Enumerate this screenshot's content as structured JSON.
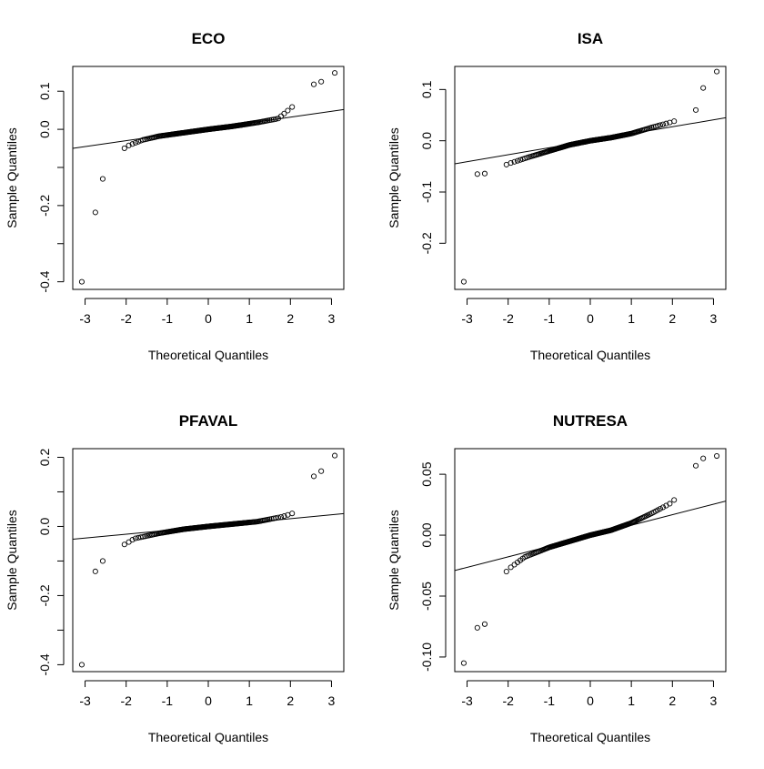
{
  "chart_data": [
    {
      "type": "scatter",
      "title": "ECO",
      "xlabel": "Theoretical Quantiles",
      "ylabel": "Sample Quantiles",
      "xlim": [
        -3.3,
        3.3
      ],
      "ylim": [
        -0.42,
        0.165
      ],
      "xticks": [
        -3,
        -2,
        -1,
        0,
        1,
        2,
        3
      ],
      "xtick_labels": [
        "-3",
        "-2",
        "-1",
        "0",
        "1",
        "2",
        "3"
      ],
      "yticks": [
        -0.4,
        -0.3,
        -0.2,
        -0.1,
        0.0,
        0.1
      ],
      "ytick_labels": [
        "-0.4",
        "",
        "-0.2",
        "",
        "0.0",
        "0.1"
      ],
      "reference_line": [
        [
          -3.3,
          -0.05
        ],
        [
          3.3,
          0.052
        ]
      ],
      "n_points": 170,
      "tails_low": [
        [
          -3.08,
          -0.4
        ],
        [
          -2.75,
          -0.218
        ],
        [
          -2.57,
          -0.13
        ]
      ],
      "tails_high": [
        [
          2.57,
          0.118
        ],
        [
          2.75,
          0.125
        ],
        [
          3.08,
          0.148
        ]
      ],
      "core": [
        [
          -2.4,
          -0.09
        ],
        [
          -2.0,
          -0.045
        ],
        [
          -1.6,
          -0.028
        ],
        [
          -1.2,
          -0.018
        ],
        [
          -0.6,
          -0.009
        ],
        [
          0.0,
          0.0
        ],
        [
          0.6,
          0.008
        ],
        [
          1.2,
          0.018
        ],
        [
          1.7,
          0.028
        ],
        [
          2.0,
          0.055
        ],
        [
          2.4,
          0.09
        ]
      ]
    },
    {
      "type": "scatter",
      "title": "ISA",
      "xlabel": "Theoretical Quantiles",
      "ylabel": "Sample Quantiles",
      "xlim": [
        -3.3,
        3.3
      ],
      "ylim": [
        -0.29,
        0.145
      ],
      "xticks": [
        -3,
        -2,
        -1,
        0,
        1,
        2,
        3
      ],
      "xtick_labels": [
        "-3",
        "-2",
        "-1",
        "0",
        "1",
        "2",
        "3"
      ],
      "yticks": [
        -0.2,
        -0.1,
        0.0,
        0.1
      ],
      "ytick_labels": [
        "-0.2",
        "-0.1",
        "0.0",
        "0.1"
      ],
      "reference_line": [
        [
          -3.3,
          -0.045
        ],
        [
          3.3,
          0.045
        ]
      ],
      "n_points": 170,
      "tails_low": [
        [
          -3.08,
          -0.275
        ],
        [
          -2.75,
          -0.065
        ],
        [
          -2.57,
          -0.064
        ]
      ],
      "tails_high": [
        [
          2.57,
          0.06
        ],
        [
          2.75,
          0.103
        ],
        [
          3.08,
          0.135
        ]
      ],
      "core": [
        [
          -2.4,
          -0.06
        ],
        [
          -2.0,
          -0.045
        ],
        [
          -1.5,
          -0.032
        ],
        [
          -1.0,
          -0.02
        ],
        [
          -0.5,
          -0.008
        ],
        [
          0.0,
          0.0
        ],
        [
          0.5,
          0.006
        ],
        [
          1.0,
          0.014
        ],
        [
          1.5,
          0.026
        ],
        [
          2.0,
          0.037
        ],
        [
          2.4,
          0.048
        ]
      ]
    },
    {
      "type": "scatter",
      "title": "PFAVAL",
      "xlabel": "Theoretical Quantiles",
      "ylabel": "Sample Quantiles",
      "xlim": [
        -3.3,
        3.3
      ],
      "ylim": [
        -0.42,
        0.225
      ],
      "xticks": [
        -3,
        -2,
        -1,
        0,
        1,
        2,
        3
      ],
      "xtick_labels": [
        "-3",
        "-2",
        "-1",
        "0",
        "1",
        "2",
        "3"
      ],
      "yticks": [
        -0.4,
        -0.3,
        -0.2,
        -0.1,
        0.0,
        0.1,
        0.2
      ],
      "ytick_labels": [
        "-0.4",
        "",
        "-0.2",
        "",
        "0.0",
        "",
        "0.2"
      ],
      "reference_line": [
        [
          -3.3,
          -0.037
        ],
        [
          3.3,
          0.037
        ]
      ],
      "n_points": 170,
      "tails_low": [
        [
          -3.08,
          -0.4
        ],
        [
          -2.75,
          -0.13
        ],
        [
          -2.57,
          -0.1
        ]
      ],
      "tails_high": [
        [
          2.57,
          0.145
        ],
        [
          2.75,
          0.16
        ],
        [
          3.08,
          0.205
        ]
      ],
      "core": [
        [
          -2.4,
          -0.07
        ],
        [
          -2.0,
          -0.05
        ],
        [
          -1.8,
          -0.035
        ],
        [
          -1.2,
          -0.02
        ],
        [
          -0.6,
          -0.008
        ],
        [
          0.0,
          0.0
        ],
        [
          0.6,
          0.007
        ],
        [
          1.2,
          0.014
        ],
        [
          1.8,
          0.028
        ],
        [
          2.1,
          0.04
        ],
        [
          2.4,
          0.07
        ]
      ]
    },
    {
      "type": "scatter",
      "title": "NUTRESA",
      "xlabel": "Theoretical Quantiles",
      "ylabel": "Sample Quantiles",
      "xlim": [
        -3.3,
        3.3
      ],
      "ylim": [
        -0.112,
        0.071
      ],
      "xticks": [
        -3,
        -2,
        -1,
        0,
        1,
        2,
        3
      ],
      "xtick_labels": [
        "-3",
        "-2",
        "-1",
        "0",
        "1",
        "2",
        "3"
      ],
      "yticks": [
        -0.1,
        -0.05,
        0.0,
        0.05
      ],
      "ytick_labels": [
        "-0.10",
        "-0.05",
        "0.00",
        "0.05"
      ],
      "reference_line": [
        [
          -3.3,
          -0.029
        ],
        [
          3.3,
          0.028
        ]
      ],
      "n_points": 170,
      "tails_low": [
        [
          -3.08,
          -0.105
        ],
        [
          -2.75,
          -0.076
        ],
        [
          -2.57,
          -0.073
        ]
      ],
      "tails_high": [
        [
          2.57,
          0.057
        ],
        [
          2.75,
          0.063
        ],
        [
          3.08,
          0.065
        ]
      ],
      "core": [
        [
          -2.4,
          -0.046
        ],
        [
          -2.0,
          -0.028
        ],
        [
          -1.6,
          -0.018
        ],
        [
          -1.0,
          -0.01
        ],
        [
          -0.5,
          -0.005
        ],
        [
          0.0,
          0.0
        ],
        [
          0.5,
          0.004
        ],
        [
          1.0,
          0.01
        ],
        [
          1.5,
          0.018
        ],
        [
          2.0,
          0.027
        ],
        [
          2.4,
          0.045
        ]
      ]
    }
  ]
}
